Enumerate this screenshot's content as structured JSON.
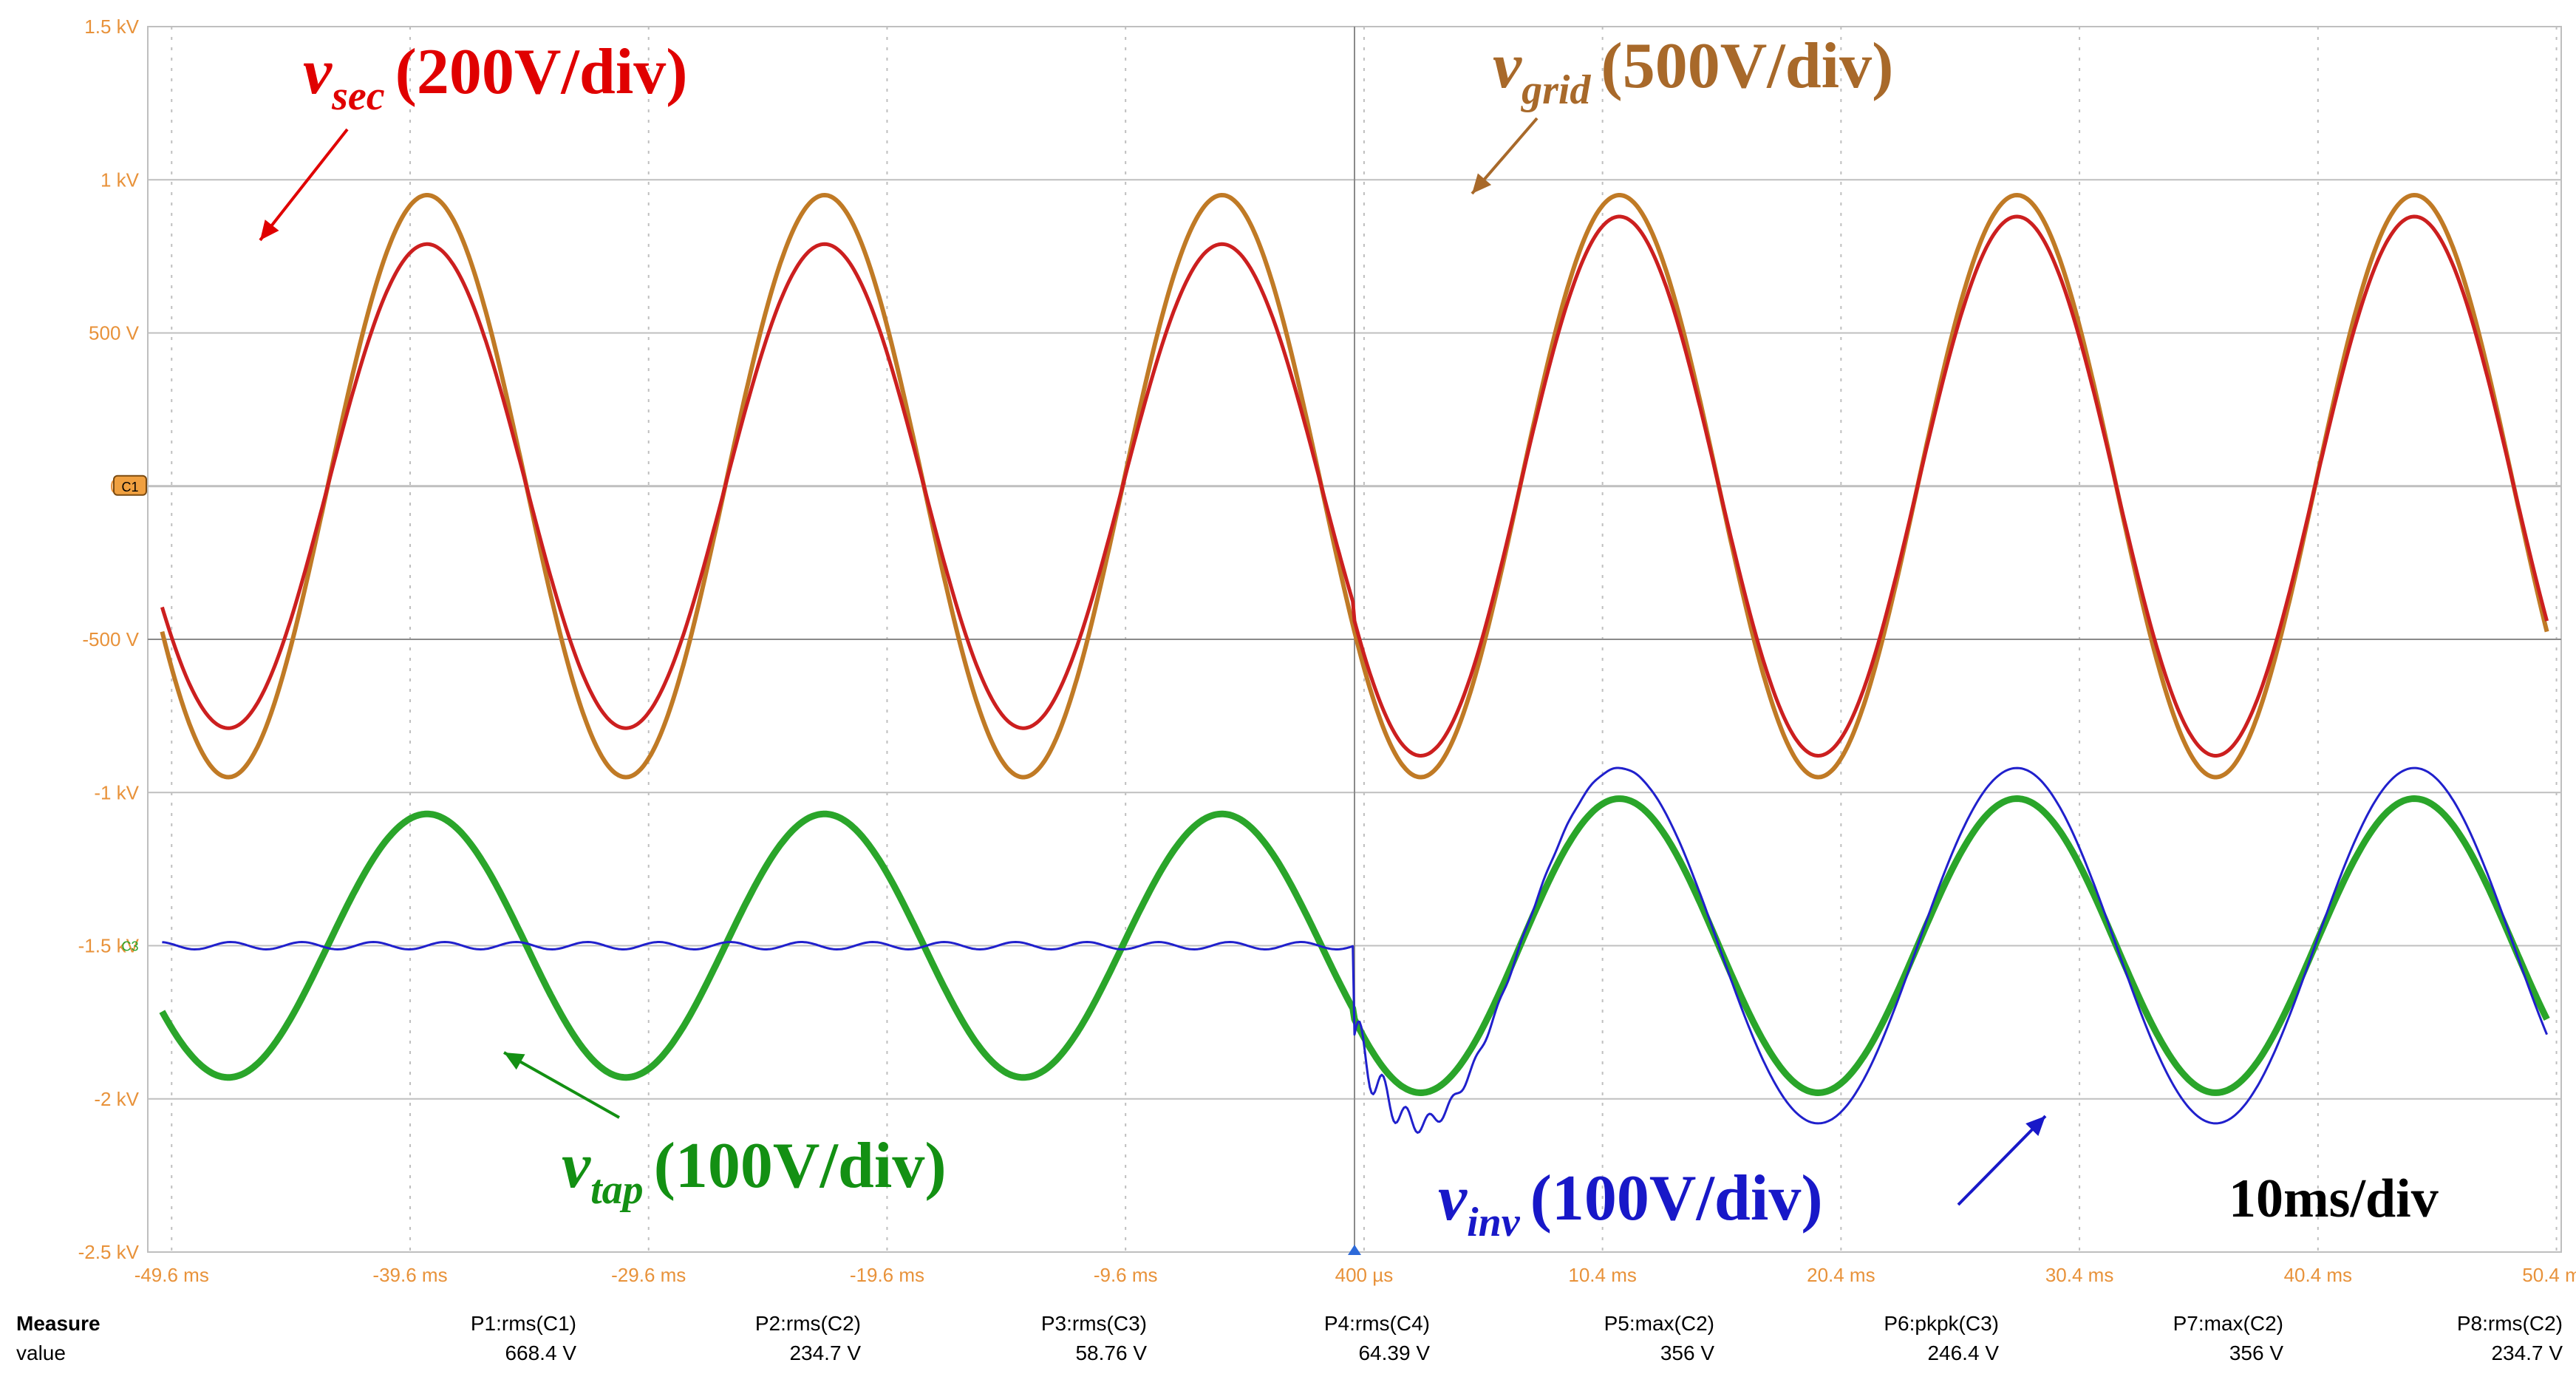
{
  "chart_data": {
    "type": "line",
    "title": "",
    "x_unit": "ms",
    "x_ticks": [
      -49.6,
      -39.6,
      -29.6,
      -19.6,
      -9.6,
      0.4,
      10.4,
      20.4,
      30.4,
      40.4,
      50.4
    ],
    "x_tick_labels": [
      "-49.6 ms",
      "-39.6 ms",
      "-29.6 ms",
      "-19.6 ms",
      "-9.6 ms",
      "400 µs",
      "10.4 ms",
      "20.4 ms",
      "30.4 ms",
      "40.4 ms",
      "50.4 ms"
    ],
    "xlim": [
      -50.6,
      50.6
    ],
    "y_ticks": [
      1.5,
      1.0,
      0.5,
      0,
      -0.5,
      -1.0,
      -1.5,
      -2.0,
      -2.5
    ],
    "y_tick_labels": [
      "1.5 kV",
      "1 kV",
      "500 V",
      "0 V",
      "-500 V",
      "-1 kV",
      "-1.5 kV",
      "-2 kV",
      "-2.5 kV"
    ],
    "ylim": [
      -2.5,
      1.5
    ],
    "grid": true,
    "time_per_div": "10ms/div",
    "trigger_time_ms": 0,
    "series": [
      {
        "name": "v_grid",
        "channel": "C1",
        "scale": "500V/div",
        "color": "#c07a25",
        "offset_kv": 0,
        "amplitude_before_kv": 0.95,
        "amplitude_after_kv": 0.95,
        "frequency_hz": 60,
        "phase_deg": -150
      },
      {
        "name": "v_sec",
        "channel": "C2",
        "scale": "200V/div",
        "color": "#cc1f1f",
        "offset_kv": 0,
        "amplitude_before_kv": 0.79,
        "amplitude_after_kv": 0.88,
        "frequency_hz": 60,
        "phase_deg": -150
      },
      {
        "name": "v_tap",
        "channel": "C3",
        "scale": "100V/div",
        "color": "#2aa52a",
        "offset_kv": -1.5,
        "amplitude_before_kv": 0.43,
        "amplitude_after_kv": 0.48,
        "frequency_hz": 60,
        "phase_deg": -150
      },
      {
        "name": "v_inv",
        "channel": "C4",
        "scale": "100V/div",
        "color": "#2020cc",
        "offset_kv": -1.5,
        "amplitude_before_kv": 0.0,
        "amplitude_after_kv": 0.58,
        "frequency_hz": 60,
        "phase_deg": -150
      }
    ],
    "channel_markers": [
      "C1",
      "C3"
    ],
    "annotations": [
      {
        "main": "v",
        "sub": "sec",
        "scale": "(200V/div)",
        "color": "#e00000"
      },
      {
        "main": "v",
        "sub": "grid",
        "scale": "(500V/div)",
        "color": "#a8692a"
      },
      {
        "main": "v",
        "sub": "tap",
        "scale": "(100V/div)",
        "color": "#139013"
      },
      {
        "main": "v",
        "sub": "inv",
        "scale": "(100V/div)",
        "color": "#1818c8"
      },
      {
        "text": "10ms/div",
        "color": "#000000"
      }
    ],
    "measure_table": {
      "header_label": "Measure",
      "value_label": "value",
      "columns": [
        "P1:rms(C1)",
        "P2:rms(C2)",
        "P3:rms(C3)",
        "P4:rms(C4)",
        "P5:max(C2)",
        "P6:pkpk(C3)",
        "P7:max(C2)",
        "P8:rms(C2)"
      ],
      "values": [
        "668.4 V",
        "234.7 V",
        "58.76 V",
        "64.39 V",
        "356 V",
        "246.4 V",
        "356 V",
        "234.7 V"
      ]
    }
  },
  "colors": {
    "axis_label": "#e8923a",
    "grid": "#bfbfbf",
    "plot_background": "#ffffff"
  }
}
